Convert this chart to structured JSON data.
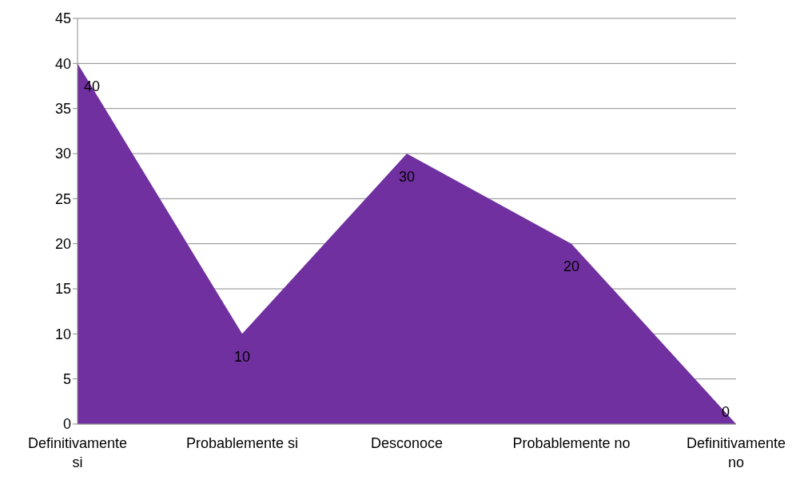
{
  "chart_data": {
    "type": "area",
    "categories": [
      "Definitivamente si",
      "Probablemente si",
      "Desconoce",
      "Probablemente no",
      "Definitivamente no"
    ],
    "values": [
      40,
      10,
      30,
      20,
      0
    ],
    "color": "#7030a0",
    "ylim": [
      0,
      45
    ],
    "yticks": [
      0,
      5,
      10,
      15,
      20,
      25,
      30,
      35,
      40,
      45
    ],
    "grid": "y",
    "data_labels": true
  }
}
